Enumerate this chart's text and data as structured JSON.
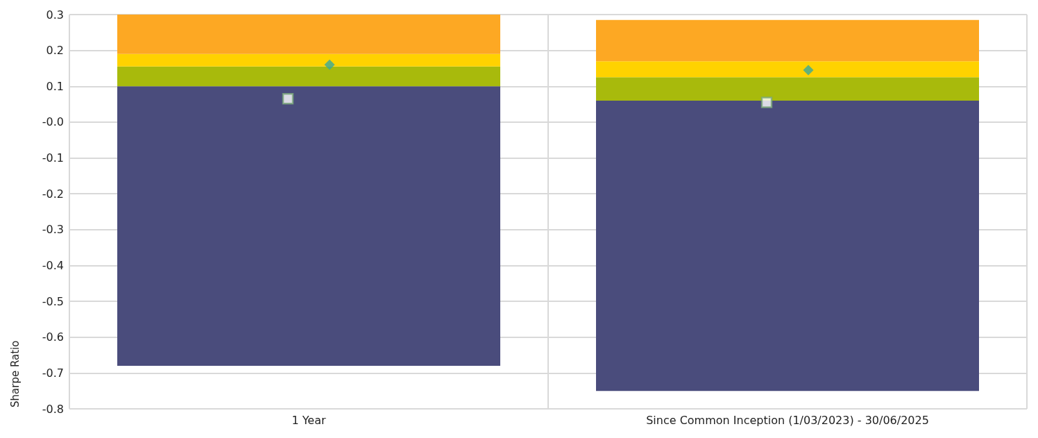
{
  "chart_data": {
    "type": "bar",
    "ylabel": "Sharpe Ratio",
    "categories": [
      "1 Year",
      "Since Common Inception (1/03/2023) - 30/06/2025"
    ],
    "series": [
      {
        "color": "#4a4c7c",
        "base": [
          -0.68,
          -0.75
        ],
        "values": [
          0.78,
          0.81
        ]
      },
      {
        "color": "#a8ba0c",
        "base": [
          0.1,
          0.06
        ],
        "values": [
          0.055,
          0.065
        ]
      },
      {
        "color": "#ffd200",
        "base": [
          0.155,
          0.125
        ],
        "values": [
          0.035,
          0.045
        ]
      },
      {
        "color": "#fda823",
        "base": [
          0.19,
          0.17
        ],
        "values": [
          0.11,
          0.115
        ]
      },
      {
        "type": "scatter",
        "marker": "diamond",
        "color": "#3aa99a",
        "x": [
          "1 Year",
          "Since Common Inception (1/03/2023) - 30/06/2025"
        ],
        "values": [
          0.16,
          0.145
        ]
      },
      {
        "type": "scatter",
        "marker": "square",
        "color": "#7aa87a",
        "x": [
          "1 Year",
          "Since Common Inception (1/03/2023) - 30/06/2025"
        ],
        "values": [
          0.065,
          0.055
        ]
      }
    ],
    "ylim": [
      -0.8,
      0.3
    ],
    "yticks": [
      -0.8,
      -0.7,
      -0.6,
      -0.5,
      -0.4,
      -0.3,
      -0.2,
      -0.1,
      {
        "value": 0,
        "label": "-0.0"
      },
      0.1,
      0.2,
      0.3
    ],
    "grid": true
  }
}
